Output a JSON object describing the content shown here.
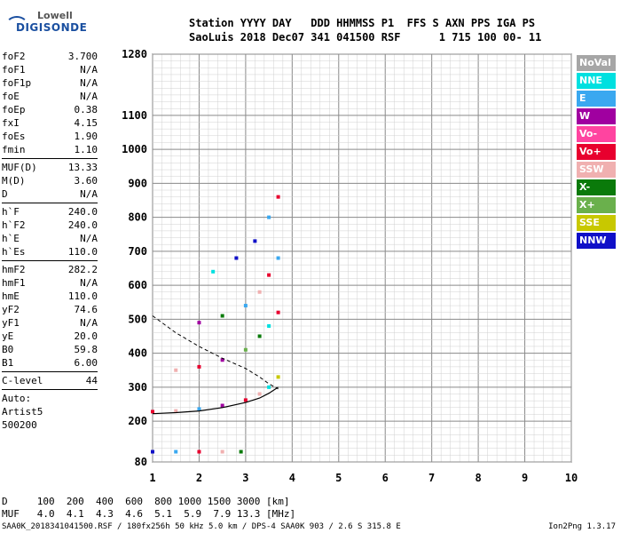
{
  "logo": {
    "line1": "Lowell",
    "line2": "DIGISONDE"
  },
  "header": {
    "line1": "Station YYYY DAY   DDD HHMMSS P1  FFS S AXN PPS IGA PS",
    "line2": "SaoLuis 2018 Dec07 341 041500 RSF      1 715 100 00- 11"
  },
  "params": [
    {
      "k": "foF2",
      "v": "3.700"
    },
    {
      "k": "foF1",
      "v": "N/A"
    },
    {
      "k": "foF1p",
      "v": "N/A"
    },
    {
      "k": "foE",
      "v": "N/A"
    },
    {
      "k": "foEp",
      "v": "0.38"
    },
    {
      "k": "fxI",
      "v": "4.15"
    },
    {
      "k": "foEs",
      "v": "1.90"
    },
    {
      "k": "fmin",
      "v": "1.10",
      "sep": true
    },
    {
      "k": "MUF(D)",
      "v": "13.33"
    },
    {
      "k": "M(D)",
      "v": "3.60"
    },
    {
      "k": "D",
      "v": "N/A",
      "sep": true
    },
    {
      "k": "h`F",
      "v": "240.0"
    },
    {
      "k": "h`F2",
      "v": "240.0"
    },
    {
      "k": "h`E",
      "v": "N/A"
    },
    {
      "k": "h`Es",
      "v": "110.0",
      "sep": true
    },
    {
      "k": "hmF2",
      "v": "282.2"
    },
    {
      "k": "hmF1",
      "v": "N/A"
    },
    {
      "k": "hmE",
      "v": "110.0"
    },
    {
      "k": "yF2",
      "v": "74.6"
    },
    {
      "k": "yF1",
      "v": "N/A"
    },
    {
      "k": "yE",
      "v": "20.0"
    },
    {
      "k": "B0",
      "v": "59.8"
    },
    {
      "k": "B1",
      "v": "6.00",
      "sep": true
    },
    {
      "k": "C-level",
      "v": "44",
      "sep": true
    }
  ],
  "auto": {
    "l1": "Auto:",
    "l2": "Artist5",
    "l3": "500200"
  },
  "legend": [
    {
      "name": "NoVal",
      "color": "#a6a6a6"
    },
    {
      "name": "NNE",
      "color": "#00e0e0"
    },
    {
      "name": "E",
      "color": "#3aa8f0"
    },
    {
      "name": "W",
      "color": "#a000a0"
    },
    {
      "name": "Vo-",
      "color": "#ff44a0"
    },
    {
      "name": "Vo+",
      "color": "#e8002e"
    },
    {
      "name": "SSW",
      "color": "#f0b0b0"
    },
    {
      "name": "X-",
      "color": "#0a7a0a"
    },
    {
      "name": "X+",
      "color": "#6ab04c"
    },
    {
      "name": "SSE",
      "color": "#c8c800"
    },
    {
      "name": "NNW",
      "color": "#1010c8"
    }
  ],
  "muf_table": {
    "d_line": "D     100  200  400  600  800 1000 1500 3000 [km]",
    "muf_line": "MUF   4.0  4.1  4.3  4.6  5.1  5.9  7.9 13.3 [MHz]"
  },
  "footer": {
    "left": "SAA0K_2018341041500.RSF / 180fx256h 50 kHz 5.0 km / DPS-4 SAA0K 903 / 2.6 S 315.8 E",
    "right": "Ion2Png 1.3.17"
  },
  "chart_data": {
    "type": "scatter",
    "title": "",
    "xlabel": "",
    "ylabel": "",
    "x_ticks": [
      1,
      2,
      3,
      4,
      5,
      6,
      7,
      8,
      9,
      10
    ],
    "y_ticks": [
      80,
      200,
      300,
      400,
      500,
      600,
      700,
      800,
      900,
      1000,
      1100,
      1280
    ],
    "xlim": [
      1,
      10
    ],
    "ylim": [
      80,
      1280
    ],
    "grid": true,
    "annotations": {
      "profile_curve": {
        "x": [
          1.0,
          1.5,
          2.0,
          2.5,
          3.0,
          3.3,
          3.5,
          3.7
        ],
        "y": [
          222,
          225,
          230,
          240,
          255,
          268,
          282,
          300
        ]
      },
      "virtual_height_dashed": {
        "x": [
          1.0,
          1.5,
          2.0,
          2.5,
          3.0,
          3.3,
          3.5,
          3.7
        ],
        "y": [
          510,
          460,
          420,
          385,
          355,
          330,
          310,
          295
        ]
      }
    },
    "series": [
      {
        "name": "F-trace 1st hop",
        "x": [
          1.0,
          1.5,
          2.0,
          2.5,
          3.0,
          3.3,
          3.5,
          3.7
        ],
        "y": [
          228,
          230,
          236,
          246,
          262,
          280,
          300,
          330
        ]
      },
      {
        "name": "F-trace 2nd hop",
        "x": [
          1.5,
          2.0,
          2.5,
          3.0,
          3.3,
          3.5,
          3.7
        ],
        "y": [
          350,
          360,
          380,
          410,
          450,
          480,
          520
        ]
      },
      {
        "name": "F-trace 3rd hop",
        "x": [
          2.0,
          2.5,
          3.0,
          3.3,
          3.5,
          3.7
        ],
        "y": [
          490,
          510,
          540,
          580,
          630,
          680
        ]
      },
      {
        "name": "F-trace 4th hop",
        "x": [
          2.3,
          2.8,
          3.2,
          3.5,
          3.7
        ],
        "y": [
          640,
          680,
          730,
          800,
          860
        ]
      },
      {
        "name": "Es trace",
        "x": [
          1.0,
          1.5,
          2.0,
          2.5,
          2.9
        ],
        "y": [
          110,
          110,
          110,
          110,
          110
        ]
      }
    ]
  }
}
